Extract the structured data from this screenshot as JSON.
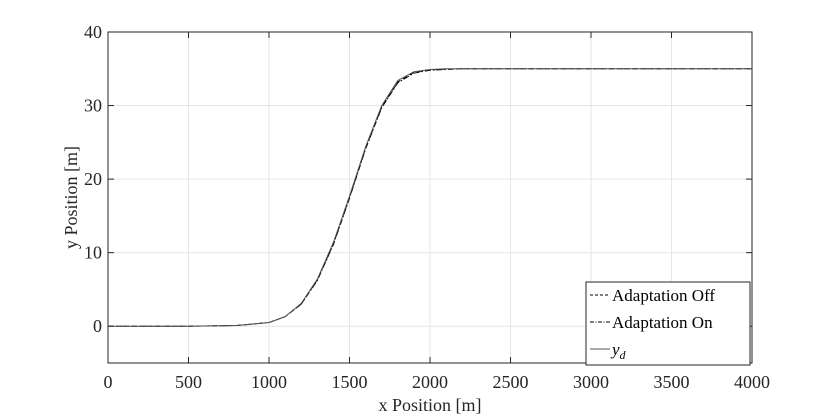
{
  "chart_data": {
    "type": "line",
    "title": "",
    "xlabel": "x Position [m]",
    "ylabel": "y Position [m]",
    "xlim": [
      0,
      4000
    ],
    "ylim": [
      -5,
      40
    ],
    "xticks": [
      0,
      500,
      1000,
      1500,
      2000,
      2500,
      3000,
      3500,
      4000
    ],
    "yticks": [
      0,
      10,
      20,
      30,
      40
    ],
    "xtick_labels": [
      "0",
      "500",
      "1000",
      "1500",
      "2000",
      "2500",
      "3000",
      "3500",
      "4000"
    ],
    "ytick_labels": [
      "0",
      "10",
      "20",
      "30",
      "40"
    ],
    "grid": true,
    "legend_position": "bottom-right",
    "series": [
      {
        "name": "Adaptation Off",
        "style": "dashed",
        "color": "#000000",
        "x": [
          0,
          500,
          800,
          1000,
          1100,
          1200,
          1300,
          1400,
          1500,
          1600,
          1700,
          1800,
          1900,
          2000,
          2100,
          2200,
          2500,
          3000,
          3500,
          4000
        ],
        "y": [
          0,
          0,
          0.1,
          0.5,
          1.3,
          3.0,
          6.3,
          11.2,
          17.5,
          24.2,
          29.8,
          33.2,
          34.5,
          34.85,
          34.95,
          35,
          35,
          35,
          35,
          35
        ]
      },
      {
        "name": "Adaptation On",
        "style": "dashdot",
        "color": "#000000",
        "x": [
          0,
          500,
          800,
          1000,
          1100,
          1200,
          1300,
          1400,
          1500,
          1600,
          1700,
          1800,
          1900,
          2000,
          2100,
          2200,
          2500,
          3000,
          3500,
          4000
        ],
        "y": [
          0,
          0,
          0.1,
          0.5,
          1.3,
          3.0,
          6.2,
          11.1,
          17.4,
          24.1,
          29.7,
          33.1,
          34.4,
          34.8,
          34.9,
          35,
          35,
          35,
          35,
          35
        ]
      },
      {
        "name": "y",
        "name_subscript": "d",
        "style": "solid",
        "color": "#555555",
        "x": [
          0,
          500,
          800,
          1000,
          1100,
          1200,
          1300,
          1400,
          1500,
          1600,
          1700,
          1800,
          1900,
          2000,
          2100,
          2200,
          2500,
          3000,
          3500,
          4000
        ],
        "y": [
          0,
          0,
          0.1,
          0.5,
          1.3,
          3.1,
          6.4,
          11.4,
          17.7,
          24.4,
          30.0,
          33.4,
          34.6,
          34.9,
          35,
          35,
          35,
          35,
          35,
          35
        ]
      }
    ]
  }
}
